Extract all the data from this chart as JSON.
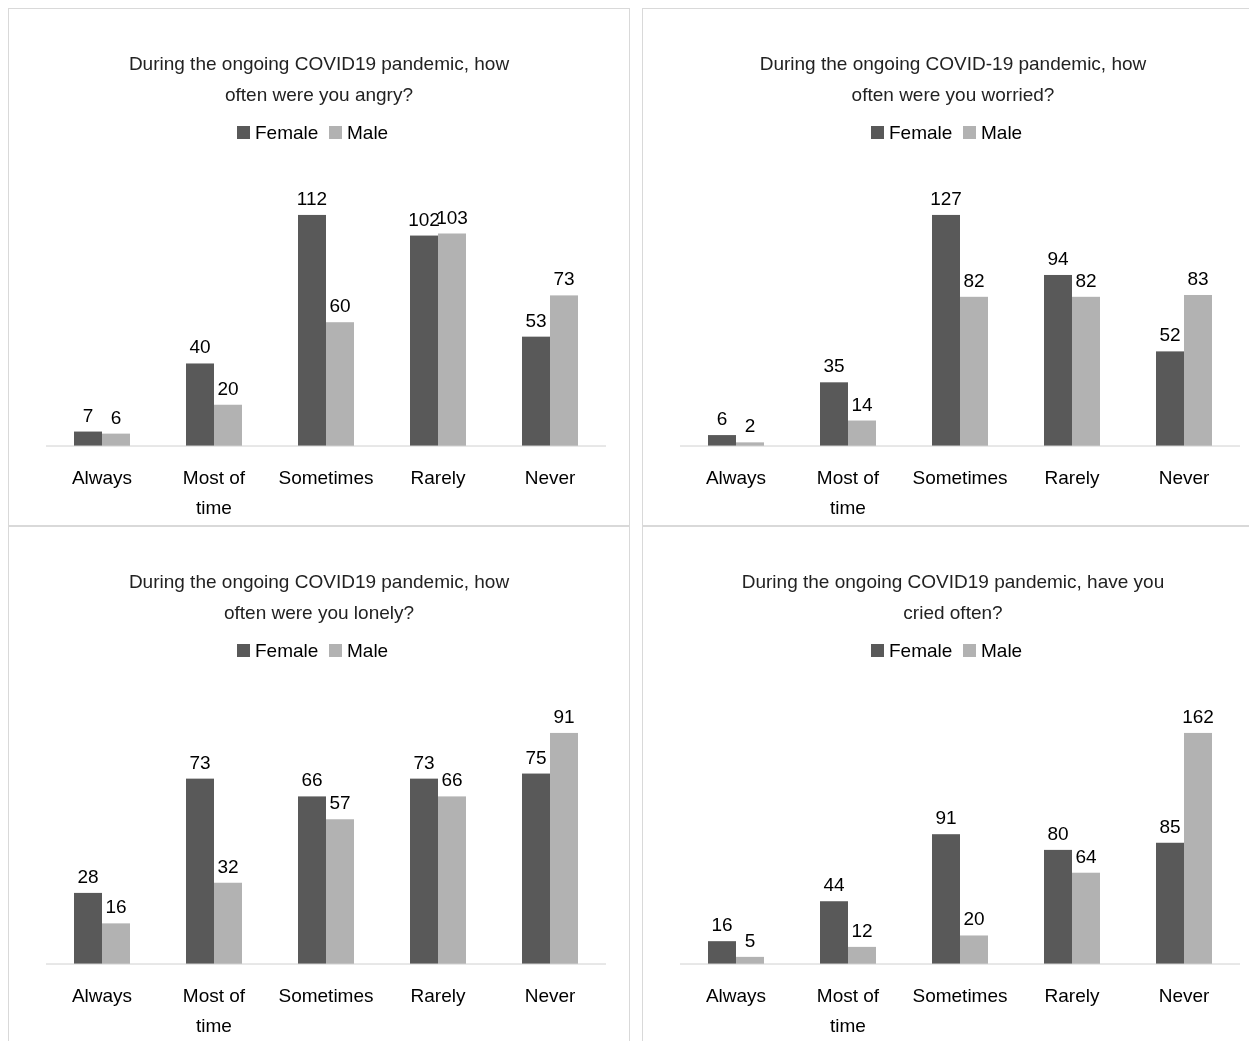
{
  "chart_data": [
    {
      "type": "bar",
      "title": "During the ongoing COVID19 pandemic, how often were you angry?",
      "categories": [
        "Always",
        "Most of time",
        "Sometimes",
        "Rarely",
        "Never"
      ],
      "series": [
        {
          "name": "Female",
          "color": "#595959",
          "values": [
            7,
            40,
            112,
            102,
            53
          ]
        },
        {
          "name": "Male",
          "color": "#b2b2b2",
          "values": [
            6,
            20,
            60,
            103,
            73
          ]
        }
      ],
      "data_labels": true,
      "legend": "top"
    },
    {
      "type": "bar",
      "title": "During the ongoing COVID-19 pandemic, how often were you worried?",
      "categories": [
        "Always",
        "Most of time",
        "Sometimes",
        "Rarely",
        "Never"
      ],
      "series": [
        {
          "name": "Female",
          "color": "#595959",
          "values": [
            6,
            35,
            127,
            94,
            52
          ]
        },
        {
          "name": "Male",
          "color": "#b2b2b2",
          "values": [
            2,
            14,
            82,
            82,
            83
          ]
        }
      ],
      "data_labels": true,
      "legend": "top"
    },
    {
      "type": "bar",
      "title": "During the ongoing COVID19 pandemic, how often were you lonely?",
      "categories": [
        "Always",
        "Most of time",
        "Sometimes",
        "Rarely",
        "Never"
      ],
      "series": [
        {
          "name": "Female",
          "color": "#595959",
          "values": [
            28,
            73,
            66,
            73,
            75
          ]
        },
        {
          "name": "Male",
          "color": "#b2b2b2",
          "values": [
            16,
            32,
            57,
            66,
            91
          ]
        }
      ],
      "data_labels": true,
      "legend": "top"
    },
    {
      "type": "bar",
      "title": "During the ongoing COVID19 pandemic, have you cried often?",
      "categories": [
        "Always",
        "Most of time",
        "Sometimes",
        "Rarely",
        "Never"
      ],
      "series": [
        {
          "name": "Female",
          "color": "#595959",
          "values": [
            16,
            44,
            91,
            80,
            85
          ]
        },
        {
          "name": "Male",
          "color": "#b2b2b2",
          "values": [
            5,
            12,
            20,
            64,
            162
          ]
        }
      ],
      "data_labels": true,
      "legend": "top"
    }
  ]
}
